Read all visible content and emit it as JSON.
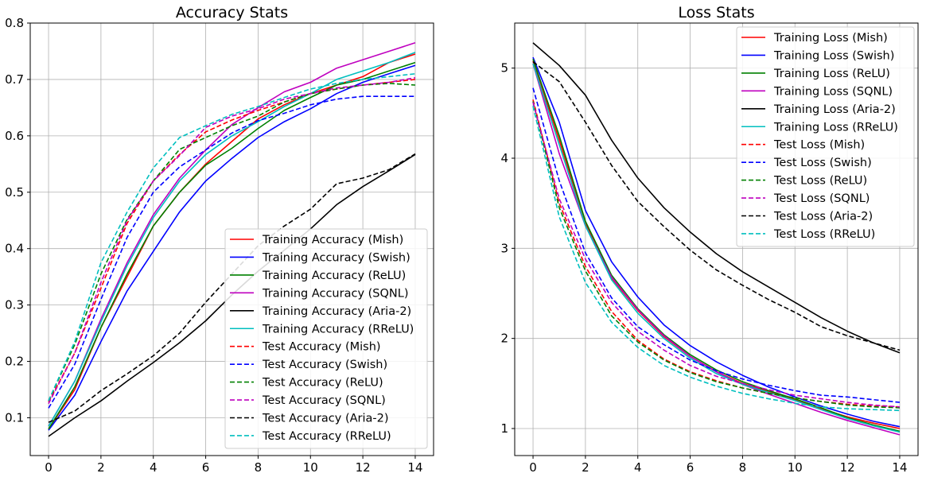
{
  "chart_data": [
    {
      "type": "line",
      "title": "Accuracy Stats",
      "xlabel": "",
      "ylabel": "",
      "x": [
        0,
        1,
        2,
        3,
        4,
        5,
        6,
        7,
        8,
        9,
        10,
        11,
        12,
        13,
        14
      ],
      "xlim": [
        -0.7,
        14.7
      ],
      "ylim": [
        0.033,
        0.8
      ],
      "xticks": [
        0,
        2,
        4,
        6,
        8,
        10,
        12,
        14
      ],
      "yticks": [
        0.1,
        0.2,
        0.3,
        0.4,
        0.5,
        0.6,
        0.7,
        0.8
      ],
      "ytick_labels": [
        "0.1",
        "0.2",
        "0.3",
        "0.4",
        "0.5",
        "0.6",
        "0.7",
        "0.8"
      ],
      "grid": true,
      "legend_position": "lower-right",
      "series": [
        {
          "name": "Training Accuracy (Mish)",
          "color": "#ff0000",
          "style": "solid",
          "values": [
            0.08,
            0.15,
            0.26,
            0.35,
            0.44,
            0.5,
            0.55,
            0.59,
            0.63,
            0.655,
            0.675,
            0.69,
            0.705,
            0.73,
            0.745
          ]
        },
        {
          "name": "Training Accuracy (Swish)",
          "color": "#0000ff",
          "style": "solid",
          "values": [
            0.078,
            0.14,
            0.235,
            0.325,
            0.395,
            0.465,
            0.52,
            0.56,
            0.597,
            0.625,
            0.648,
            0.675,
            0.695,
            0.71,
            0.725
          ]
        },
        {
          "name": "Training Accuracy (ReLU)",
          "color": "#008000",
          "style": "solid",
          "values": [
            0.08,
            0.155,
            0.26,
            0.355,
            0.44,
            0.5,
            0.548,
            0.578,
            0.613,
            0.645,
            0.668,
            0.69,
            0.7,
            0.715,
            0.73
          ]
        },
        {
          "name": "Training Accuracy (SQNL)",
          "color": "#bf00bf",
          "style": "solid",
          "values": [
            0.085,
            0.165,
            0.275,
            0.375,
            0.46,
            0.525,
            0.575,
            0.62,
            0.65,
            0.678,
            0.695,
            0.72,
            0.735,
            0.75,
            0.765
          ]
        },
        {
          "name": "Training Accuracy (Aria-2)",
          "color": "#000000",
          "style": "solid",
          "values": [
            0.067,
            0.1,
            0.13,
            0.165,
            0.198,
            0.233,
            0.272,
            0.318,
            0.36,
            0.397,
            0.435,
            0.478,
            0.51,
            0.538,
            0.567
          ]
        },
        {
          "name": "Training Accuracy (RReLU)",
          "color": "#00bfbf",
          "style": "solid",
          "values": [
            0.085,
            0.165,
            0.27,
            0.37,
            0.455,
            0.52,
            0.567,
            0.6,
            0.625,
            0.652,
            0.675,
            0.7,
            0.715,
            0.73,
            0.748
          ]
        },
        {
          "name": "Test Accuracy (Mish)",
          "color": "#ff0000",
          "style": "dashed",
          "values": [
            0.128,
            0.215,
            0.33,
            0.445,
            0.52,
            0.567,
            0.607,
            0.628,
            0.645,
            0.66,
            0.675,
            0.683,
            0.69,
            0.695,
            0.7
          ]
        },
        {
          "name": "Test Accuracy (Swish)",
          "color": "#0000ff",
          "style": "dashed",
          "values": [
            0.117,
            0.195,
            0.31,
            0.42,
            0.5,
            0.545,
            0.575,
            0.605,
            0.627,
            0.64,
            0.655,
            0.665,
            0.67,
            0.67,
            0.67
          ]
        },
        {
          "name": "Test Accuracy (ReLU)",
          "color": "#008000",
          "style": "dashed",
          "values": [
            0.13,
            0.23,
            0.355,
            0.452,
            0.52,
            0.576,
            0.597,
            0.618,
            0.635,
            0.66,
            0.675,
            0.683,
            0.69,
            0.693,
            0.69
          ]
        },
        {
          "name": "Test Accuracy (SQNL)",
          "color": "#bf00bf",
          "style": "dashed",
          "values": [
            0.125,
            0.215,
            0.34,
            0.45,
            0.52,
            0.565,
            0.615,
            0.635,
            0.648,
            0.665,
            0.675,
            0.685,
            0.69,
            0.695,
            0.703
          ]
        },
        {
          "name": "Test Accuracy (Aria-2)",
          "color": "#000000",
          "style": "dashed",
          "values": [
            0.092,
            0.112,
            0.148,
            0.178,
            0.21,
            0.25,
            0.305,
            0.355,
            0.405,
            0.44,
            0.47,
            0.515,
            0.525,
            0.54,
            0.568
          ]
        },
        {
          "name": "Test Accuracy (RReLU)",
          "color": "#00bfbf",
          "style": "dashed",
          "values": [
            0.13,
            0.235,
            0.375,
            0.465,
            0.543,
            0.597,
            0.618,
            0.638,
            0.652,
            0.668,
            0.683,
            0.693,
            0.7,
            0.705,
            0.71
          ]
        }
      ]
    },
    {
      "type": "line",
      "title": "Loss Stats",
      "xlabel": "",
      "ylabel": "",
      "x": [
        0,
        1,
        2,
        3,
        4,
        5,
        6,
        7,
        8,
        9,
        10,
        11,
        12,
        13,
        14
      ],
      "xlim": [
        -0.7,
        14.7
      ],
      "ylim": [
        0.7,
        5.5
      ],
      "xticks": [
        0,
        2,
        4,
        6,
        8,
        10,
        12,
        14
      ],
      "yticks": [
        1,
        2,
        3,
        4,
        5
      ],
      "ytick_labels": [
        "1",
        "2",
        "3",
        "4",
        "5"
      ],
      "grid": true,
      "legend_position": "upper-right",
      "series": [
        {
          "name": "Training Loss (Mish)",
          "color": "#ff0000",
          "style": "solid",
          "values": [
            5.08,
            4.2,
            3.28,
            2.67,
            2.31,
            2.02,
            1.8,
            1.63,
            1.5,
            1.41,
            1.32,
            1.22,
            1.13,
            1.06,
            1.0
          ]
        },
        {
          "name": "Training Loss (Swish)",
          "color": "#0000ff",
          "style": "solid",
          "values": [
            5.12,
            4.4,
            3.42,
            2.85,
            2.46,
            2.15,
            1.92,
            1.74,
            1.59,
            1.46,
            1.35,
            1.25,
            1.16,
            1.08,
            1.02
          ]
        },
        {
          "name": "Training Loss (ReLU)",
          "color": "#008000",
          "style": "solid",
          "values": [
            5.1,
            4.25,
            3.3,
            2.7,
            2.33,
            2.04,
            1.82,
            1.65,
            1.52,
            1.42,
            1.33,
            1.23,
            1.12,
            1.04,
            0.97
          ]
        },
        {
          "name": "Training Loss (SQNL)",
          "color": "#bf00bf",
          "style": "solid",
          "values": [
            5.05,
            4.05,
            3.25,
            2.68,
            2.32,
            2.03,
            1.8,
            1.63,
            1.49,
            1.38,
            1.28,
            1.18,
            1.09,
            1.01,
            0.93
          ]
        },
        {
          "name": "Training Loss (Aria-2)",
          "color": "#000000",
          "style": "solid",
          "values": [
            5.28,
            5.03,
            4.7,
            4.2,
            3.78,
            3.45,
            3.18,
            2.94,
            2.74,
            2.57,
            2.4,
            2.23,
            2.08,
            1.95,
            1.84
          ]
        },
        {
          "name": "Training Loss (RReLU)",
          "color": "#00bfbf",
          "style": "solid",
          "values": [
            5.05,
            4.15,
            3.25,
            2.65,
            2.28,
            2.0,
            1.78,
            1.61,
            1.49,
            1.4,
            1.31,
            1.21,
            1.11,
            1.03,
            0.96
          ]
        },
        {
          "name": "Test Loss (Mish)",
          "color": "#ff0000",
          "style": "dashed",
          "values": [
            4.65,
            3.5,
            2.8,
            2.3,
            1.98,
            1.77,
            1.63,
            1.53,
            1.45,
            1.39,
            1.34,
            1.3,
            1.27,
            1.25,
            1.24
          ]
        },
        {
          "name": "Test Loss (Swish)",
          "color": "#0000ff",
          "style": "dashed",
          "values": [
            4.78,
            3.75,
            2.95,
            2.45,
            2.13,
            1.93,
            1.76,
            1.64,
            1.55,
            1.48,
            1.42,
            1.37,
            1.35,
            1.32,
            1.29
          ]
        },
        {
          "name": "Test Loss (ReLU)",
          "color": "#008000",
          "style": "dashed",
          "values": [
            4.63,
            3.45,
            2.75,
            2.25,
            1.96,
            1.76,
            1.62,
            1.52,
            1.45,
            1.39,
            1.34,
            1.3,
            1.26,
            1.24,
            1.23
          ]
        },
        {
          "name": "Test Loss (SQNL)",
          "color": "#bf00bf",
          "style": "dashed",
          "values": [
            4.62,
            3.55,
            2.88,
            2.4,
            2.08,
            1.87,
            1.7,
            1.58,
            1.5,
            1.43,
            1.37,
            1.33,
            1.29,
            1.26,
            1.24
          ]
        },
        {
          "name": "Test Loss (Aria-2)",
          "color": "#000000",
          "style": "dashed",
          "values": [
            5.07,
            4.85,
            4.4,
            3.92,
            3.52,
            3.24,
            2.98,
            2.76,
            2.59,
            2.43,
            2.29,
            2.13,
            2.03,
            1.95,
            1.87
          ]
        },
        {
          "name": "Test Loss (RReLU)",
          "color": "#00bfbf",
          "style": "dashed",
          "values": [
            4.58,
            3.35,
            2.62,
            2.18,
            1.9,
            1.7,
            1.57,
            1.47,
            1.39,
            1.33,
            1.28,
            1.24,
            1.22,
            1.21,
            1.2
          ]
        }
      ]
    }
  ]
}
